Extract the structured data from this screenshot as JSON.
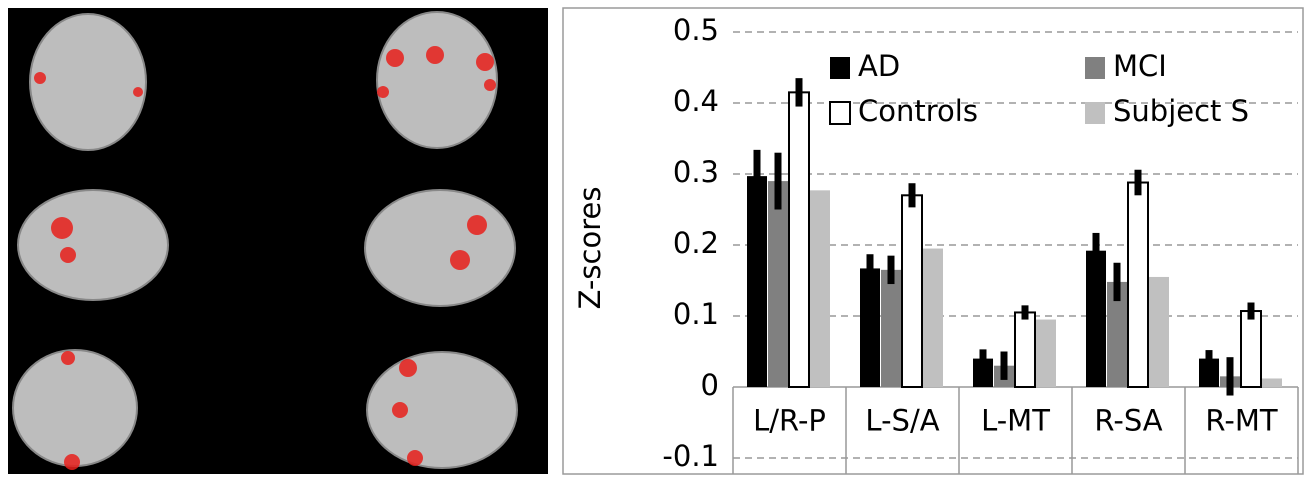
{
  "chart_data": {
    "type": "bar",
    "y_label": "Z-scores",
    "categories": [
      "L/R-P",
      "L-S/A",
      "L-MT",
      "R-SA",
      "R-MT"
    ],
    "series": [
      {
        "name": "AD",
        "color": "#000000",
        "values": [
          0.297,
          0.167,
          0.04,
          0.192,
          0.04
        ],
        "errors": [
          0.037,
          0.02,
          0.013,
          0.025,
          0.012
        ]
      },
      {
        "name": "MCI",
        "color": "#808080",
        "values": [
          0.29,
          0.165,
          0.03,
          0.148,
          0.015
        ],
        "errors": [
          0.04,
          0.02,
          0.02,
          0.027,
          0.027
        ]
      },
      {
        "name": "Controls",
        "color": "#ffffff",
        "values": [
          0.415,
          0.27,
          0.105,
          0.288,
          0.107
        ],
        "errors": [
          0.02,
          0.017,
          0.01,
          0.018,
          0.012
        ]
      },
      {
        "name": "Subject S",
        "color": "#c0c0c0",
        "values": [
          0.277,
          0.195,
          0.095,
          0.155,
          0.012
        ]
      }
    ],
    "ylim": [
      -0.1,
      0.5
    ],
    "yticks": [
      -0.1,
      0,
      0.1,
      0.2,
      0.3,
      0.4,
      0.5
    ],
    "grid": true,
    "legend": "top"
  }
}
